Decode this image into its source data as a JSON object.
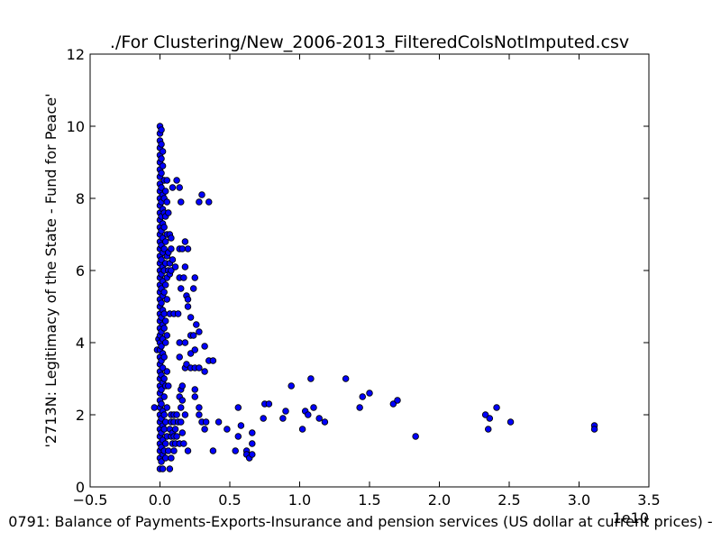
{
  "chart_data": {
    "type": "scatter",
    "title": "./For Clustering/New_2006-2013_FilteredColsNotImputed.csv",
    "xlabel": "0791: Balance of Payments-Exports-Insurance and pension services (US dollar at current prices) -",
    "ylabel": "'2713N: Legitimacy of the State - Fund for Peace'",
    "x_offset_label": "1e10",
    "xlim": [
      -0.5,
      3.5
    ],
    "ylim": [
      0,
      12
    ],
    "x_ticks": [
      "−0.5",
      "0.0",
      "0.5",
      "1.0",
      "1.5",
      "2.0",
      "2.5",
      "3.0",
      "3.5"
    ],
    "y_ticks": [
      "0",
      "2",
      "4",
      "6",
      "8",
      "10",
      "12"
    ],
    "grid": false,
    "marker_color": "#0000ff",
    "points": [
      {
        "x": -0.04,
        "y": 2.2
      },
      {
        "x": -0.02,
        "y": 3.8
      },
      {
        "x": -0.01,
        "y": 4.1
      },
      {
        "x": 0.0,
        "y": 10.0
      },
      {
        "x": 0.0,
        "y": 9.8
      },
      {
        "x": 0.0,
        "y": 9.6
      },
      {
        "x": 0.0,
        "y": 9.4
      },
      {
        "x": 0.0,
        "y": 9.2
      },
      {
        "x": 0.0,
        "y": 9.0
      },
      {
        "x": 0.0,
        "y": 8.8
      },
      {
        "x": 0.0,
        "y": 8.6
      },
      {
        "x": 0.0,
        "y": 8.4
      },
      {
        "x": 0.0,
        "y": 8.2
      },
      {
        "x": 0.0,
        "y": 8.0
      },
      {
        "x": 0.0,
        "y": 7.8
      },
      {
        "x": 0.0,
        "y": 7.6
      },
      {
        "x": 0.0,
        "y": 7.4
      },
      {
        "x": 0.0,
        "y": 7.2
      },
      {
        "x": 0.0,
        "y": 7.0
      },
      {
        "x": 0.0,
        "y": 6.8
      },
      {
        "x": 0.0,
        "y": 6.6
      },
      {
        "x": 0.0,
        "y": 6.4
      },
      {
        "x": 0.0,
        "y": 6.2
      },
      {
        "x": 0.0,
        "y": 6.0
      },
      {
        "x": 0.0,
        "y": 5.8
      },
      {
        "x": 0.0,
        "y": 5.6
      },
      {
        "x": 0.0,
        "y": 5.4
      },
      {
        "x": 0.0,
        "y": 5.2
      },
      {
        "x": 0.0,
        "y": 5.0
      },
      {
        "x": 0.0,
        "y": 4.8
      },
      {
        "x": 0.0,
        "y": 4.6
      },
      {
        "x": 0.0,
        "y": 4.4
      },
      {
        "x": 0.0,
        "y": 4.2
      },
      {
        "x": 0.0,
        "y": 4.0
      },
      {
        "x": 0.0,
        "y": 3.8
      },
      {
        "x": 0.0,
        "y": 3.6
      },
      {
        "x": 0.0,
        "y": 3.4
      },
      {
        "x": 0.0,
        "y": 3.2
      },
      {
        "x": 0.0,
        "y": 3.0
      },
      {
        "x": 0.0,
        "y": 2.8
      },
      {
        "x": 0.0,
        "y": 2.6
      },
      {
        "x": 0.0,
        "y": 2.4
      },
      {
        "x": 0.0,
        "y": 2.2
      },
      {
        "x": 0.0,
        "y": 2.0
      },
      {
        "x": 0.0,
        "y": 1.8
      },
      {
        "x": 0.0,
        "y": 1.6
      },
      {
        "x": 0.0,
        "y": 1.4
      },
      {
        "x": 0.0,
        "y": 1.2
      },
      {
        "x": 0.0,
        "y": 1.0
      },
      {
        "x": 0.0,
        "y": 0.8
      },
      {
        "x": 0.0,
        "y": 0.5
      },
      {
        "x": 0.01,
        "y": 9.9
      },
      {
        "x": 0.01,
        "y": 9.5
      },
      {
        "x": 0.01,
        "y": 9.1
      },
      {
        "x": 0.01,
        "y": 8.7
      },
      {
        "x": 0.01,
        "y": 8.3
      },
      {
        "x": 0.01,
        "y": 7.9
      },
      {
        "x": 0.01,
        "y": 7.5
      },
      {
        "x": 0.01,
        "y": 7.1
      },
      {
        "x": 0.01,
        "y": 6.7
      },
      {
        "x": 0.01,
        "y": 6.3
      },
      {
        "x": 0.01,
        "y": 5.9
      },
      {
        "x": 0.01,
        "y": 5.5
      },
      {
        "x": 0.01,
        "y": 5.1
      },
      {
        "x": 0.01,
        "y": 4.7
      },
      {
        "x": 0.01,
        "y": 4.3
      },
      {
        "x": 0.01,
        "y": 3.9
      },
      {
        "x": 0.01,
        "y": 3.5
      },
      {
        "x": 0.01,
        "y": 3.1
      },
      {
        "x": 0.01,
        "y": 2.7
      },
      {
        "x": 0.01,
        "y": 2.3
      },
      {
        "x": 0.01,
        "y": 1.9
      },
      {
        "x": 0.01,
        "y": 1.5
      },
      {
        "x": 0.01,
        "y": 1.1
      },
      {
        "x": 0.01,
        "y": 0.7
      },
      {
        "x": 0.02,
        "y": 9.3
      },
      {
        "x": 0.02,
        "y": 8.9
      },
      {
        "x": 0.02,
        "y": 8.1
      },
      {
        "x": 0.02,
        "y": 7.7
      },
      {
        "x": 0.02,
        "y": 7.3
      },
      {
        "x": 0.02,
        "y": 6.9
      },
      {
        "x": 0.02,
        "y": 6.5
      },
      {
        "x": 0.02,
        "y": 6.1
      },
      {
        "x": 0.02,
        "y": 5.7
      },
      {
        "x": 0.02,
        "y": 5.3
      },
      {
        "x": 0.02,
        "y": 4.9
      },
      {
        "x": 0.02,
        "y": 4.5
      },
      {
        "x": 0.02,
        "y": 4.1
      },
      {
        "x": 0.02,
        "y": 3.7
      },
      {
        "x": 0.02,
        "y": 3.3
      },
      {
        "x": 0.02,
        "y": 2.9
      },
      {
        "x": 0.02,
        "y": 2.1
      },
      {
        "x": 0.02,
        "y": 1.7
      },
      {
        "x": 0.02,
        "y": 1.3
      },
      {
        "x": 0.02,
        "y": 0.9
      },
      {
        "x": 0.02,
        "y": 0.5
      },
      {
        "x": 0.03,
        "y": 8.5
      },
      {
        "x": 0.03,
        "y": 8.0
      },
      {
        "x": 0.03,
        "y": 7.6
      },
      {
        "x": 0.03,
        "y": 7.2
      },
      {
        "x": 0.03,
        "y": 6.6
      },
      {
        "x": 0.03,
        "y": 6.0
      },
      {
        "x": 0.03,
        "y": 5.4
      },
      {
        "x": 0.03,
        "y": 4.8
      },
      {
        "x": 0.03,
        "y": 4.4
      },
      {
        "x": 0.03,
        "y": 3.6
      },
      {
        "x": 0.03,
        "y": 3.0
      },
      {
        "x": 0.03,
        "y": 2.5
      },
      {
        "x": 0.03,
        "y": 2.0
      },
      {
        "x": 0.03,
        "y": 1.6
      },
      {
        "x": 0.03,
        "y": 1.0
      },
      {
        "x": 0.04,
        "y": 8.2
      },
      {
        "x": 0.04,
        "y": 7.5
      },
      {
        "x": 0.04,
        "y": 6.8
      },
      {
        "x": 0.04,
        "y": 6.2
      },
      {
        "x": 0.04,
        "y": 5.6
      },
      {
        "x": 0.04,
        "y": 4.6
      },
      {
        "x": 0.04,
        "y": 4.0
      },
      {
        "x": 0.04,
        "y": 2.8
      },
      {
        "x": 0.04,
        "y": 1.8
      },
      {
        "x": 0.04,
        "y": 1.2
      },
      {
        "x": 0.04,
        "y": 0.8
      },
      {
        "x": 0.05,
        "y": 8.5
      },
      {
        "x": 0.05,
        "y": 7.9
      },
      {
        "x": 0.05,
        "y": 7.0
      },
      {
        "x": 0.05,
        "y": 6.4
      },
      {
        "x": 0.05,
        "y": 5.8
      },
      {
        "x": 0.05,
        "y": 5.2
      },
      {
        "x": 0.05,
        "y": 4.2
      },
      {
        "x": 0.05,
        "y": 3.2
      },
      {
        "x": 0.05,
        "y": 2.2
      },
      {
        "x": 0.05,
        "y": 1.4
      },
      {
        "x": 0.06,
        "y": 7.6
      },
      {
        "x": 0.06,
        "y": 6.5
      },
      {
        "x": 0.06,
        "y": 6.0
      },
      {
        "x": 0.06,
        "y": 2.8
      },
      {
        "x": 0.06,
        "y": 1.0
      },
      {
        "x": 0.07,
        "y": 7.0
      },
      {
        "x": 0.07,
        "y": 6.2
      },
      {
        "x": 0.07,
        "y": 5.9
      },
      {
        "x": 0.07,
        "y": 4.8
      },
      {
        "x": 0.07,
        "y": 1.6
      },
      {
        "x": 0.07,
        "y": 0.5
      },
      {
        "x": 0.08,
        "y": 6.9
      },
      {
        "x": 0.08,
        "y": 6.6
      },
      {
        "x": 0.08,
        "y": 6.0
      },
      {
        "x": 0.08,
        "y": 2.0
      },
      {
        "x": 0.08,
        "y": 1.8
      },
      {
        "x": 0.08,
        "y": 1.4
      },
      {
        "x": 0.08,
        "y": 0.8
      },
      {
        "x": 0.09,
        "y": 8.3
      },
      {
        "x": 0.09,
        "y": 6.3
      },
      {
        "x": 0.09,
        "y": 1.5
      },
      {
        "x": 0.09,
        "y": 1.2
      },
      {
        "x": 0.1,
        "y": 4.8
      },
      {
        "x": 0.1,
        "y": 2.0
      },
      {
        "x": 0.1,
        "y": 1.8
      },
      {
        "x": 0.1,
        "y": 1.4
      },
      {
        "x": 0.1,
        "y": 1.0
      },
      {
        "x": 0.11,
        "y": 6.1
      },
      {
        "x": 0.11,
        "y": 1.6
      },
      {
        "x": 0.11,
        "y": 1.2
      },
      {
        "x": 0.12,
        "y": 8.5
      },
      {
        "x": 0.12,
        "y": 2.0
      },
      {
        "x": 0.12,
        "y": 1.4
      },
      {
        "x": 0.13,
        "y": 4.8
      },
      {
        "x": 0.13,
        "y": 1.8
      },
      {
        "x": 0.14,
        "y": 8.3
      },
      {
        "x": 0.14,
        "y": 6.6
      },
      {
        "x": 0.14,
        "y": 5.8
      },
      {
        "x": 0.14,
        "y": 4.0
      },
      {
        "x": 0.14,
        "y": 3.6
      },
      {
        "x": 0.14,
        "y": 2.5
      },
      {
        "x": 0.14,
        "y": 1.2
      },
      {
        "x": 0.15,
        "y": 7.9
      },
      {
        "x": 0.15,
        "y": 5.5
      },
      {
        "x": 0.15,
        "y": 2.7
      },
      {
        "x": 0.15,
        "y": 2.2
      },
      {
        "x": 0.15,
        "y": 1.8
      },
      {
        "x": 0.16,
        "y": 6.6
      },
      {
        "x": 0.16,
        "y": 2.8
      },
      {
        "x": 0.16,
        "y": 2.4
      },
      {
        "x": 0.16,
        "y": 1.5
      },
      {
        "x": 0.17,
        "y": 5.8
      },
      {
        "x": 0.17,
        "y": 1.2
      },
      {
        "x": 0.18,
        "y": 6.8
      },
      {
        "x": 0.18,
        "y": 6.1
      },
      {
        "x": 0.18,
        "y": 4.0
      },
      {
        "x": 0.18,
        "y": 3.3
      },
      {
        "x": 0.18,
        "y": 2.0
      },
      {
        "x": 0.19,
        "y": 5.3
      },
      {
        "x": 0.19,
        "y": 3.4
      },
      {
        "x": 0.2,
        "y": 6.6
      },
      {
        "x": 0.2,
        "y": 5.2
      },
      {
        "x": 0.2,
        "y": 5.0
      },
      {
        "x": 0.2,
        "y": 1.0
      },
      {
        "x": 0.22,
        "y": 4.7
      },
      {
        "x": 0.22,
        "y": 4.2
      },
      {
        "x": 0.22,
        "y": 3.7
      },
      {
        "x": 0.22,
        "y": 3.3
      },
      {
        "x": 0.24,
        "y": 5.5
      },
      {
        "x": 0.24,
        "y": 4.2
      },
      {
        "x": 0.25,
        "y": 5.8
      },
      {
        "x": 0.25,
        "y": 3.8
      },
      {
        "x": 0.25,
        "y": 3.3
      },
      {
        "x": 0.25,
        "y": 2.7
      },
      {
        "x": 0.25,
        "y": 2.5
      },
      {
        "x": 0.26,
        "y": 4.5
      },
      {
        "x": 0.28,
        "y": 7.9
      },
      {
        "x": 0.28,
        "y": 4.3
      },
      {
        "x": 0.28,
        "y": 3.3
      },
      {
        "x": 0.28,
        "y": 2.2
      },
      {
        "x": 0.28,
        "y": 2.0
      },
      {
        "x": 0.3,
        "y": 8.1
      },
      {
        "x": 0.3,
        "y": 1.8
      },
      {
        "x": 0.32,
        "y": 3.9
      },
      {
        "x": 0.32,
        "y": 3.2
      },
      {
        "x": 0.32,
        "y": 1.6
      },
      {
        "x": 0.33,
        "y": 1.8
      },
      {
        "x": 0.35,
        "y": 7.9
      },
      {
        "x": 0.35,
        "y": 3.5
      },
      {
        "x": 0.38,
        "y": 3.5
      },
      {
        "x": 0.38,
        "y": 1.0
      },
      {
        "x": 0.42,
        "y": 1.8
      },
      {
        "x": 0.48,
        "y": 1.6
      },
      {
        "x": 0.54,
        "y": 1.0
      },
      {
        "x": 0.56,
        "y": 2.2
      },
      {
        "x": 0.56,
        "y": 1.4
      },
      {
        "x": 0.58,
        "y": 1.7
      },
      {
        "x": 0.62,
        "y": 1.0
      },
      {
        "x": 0.62,
        "y": 0.9
      },
      {
        "x": 0.64,
        "y": 0.8
      },
      {
        "x": 0.66,
        "y": 1.5
      },
      {
        "x": 0.66,
        "y": 1.2
      },
      {
        "x": 0.66,
        "y": 0.9
      },
      {
        "x": 0.74,
        "y": 1.9
      },
      {
        "x": 0.75,
        "y": 2.3
      },
      {
        "x": 0.78,
        "y": 2.3
      },
      {
        "x": 0.88,
        "y": 1.9
      },
      {
        "x": 0.9,
        "y": 2.1
      },
      {
        "x": 0.94,
        "y": 2.8
      },
      {
        "x": 1.02,
        "y": 1.6
      },
      {
        "x": 1.04,
        "y": 2.1
      },
      {
        "x": 1.06,
        "y": 2.0
      },
      {
        "x": 1.08,
        "y": 3.0
      },
      {
        "x": 1.1,
        "y": 2.2
      },
      {
        "x": 1.14,
        "y": 1.9
      },
      {
        "x": 1.18,
        "y": 1.8
      },
      {
        "x": 1.33,
        "y": 3.0
      },
      {
        "x": 1.43,
        "y": 2.2
      },
      {
        "x": 1.45,
        "y": 2.5
      },
      {
        "x": 1.5,
        "y": 2.6
      },
      {
        "x": 1.67,
        "y": 2.3
      },
      {
        "x": 1.7,
        "y": 2.4
      },
      {
        "x": 1.83,
        "y": 1.4
      },
      {
        "x": 2.33,
        "y": 2.0
      },
      {
        "x": 2.35,
        "y": 1.6
      },
      {
        "x": 2.36,
        "y": 1.9
      },
      {
        "x": 2.41,
        "y": 2.2
      },
      {
        "x": 2.51,
        "y": 1.8
      },
      {
        "x": 3.11,
        "y": 1.7
      },
      {
        "x": 3.11,
        "y": 1.6
      }
    ]
  }
}
